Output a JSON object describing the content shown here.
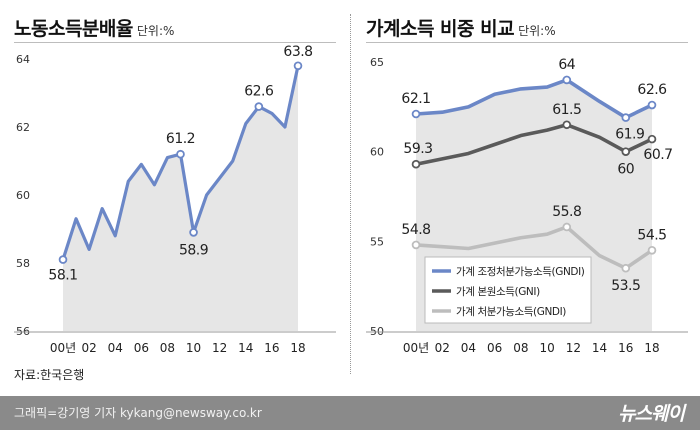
{
  "left_chart": {
    "title": "노동소득분배율",
    "unit": "단위:%"
  },
  "right_chart": {
    "title": "가계소득 비중 비교",
    "unit": "단위:%"
  },
  "source": "자료:한국은행",
  "footer": {
    "credit": "그래픽=강기영 기자 kykang@newsway.co.kr",
    "brand": "뉴스웨이"
  },
  "colors": {
    "labor_line": "#6b87c7",
    "gndi_adj": "#6b87c7",
    "gni": "#5a5a5a",
    "gndi_disp": "#bdbdbd",
    "area_fill": "#e6e6e6",
    "footer_bg": "#8a8a8a"
  },
  "chart_data": [
    {
      "type": "area",
      "title": "노동소득분배율",
      "ylim": [
        56,
        64
      ],
      "yticks": [
        56,
        58,
        60,
        62,
        64
      ],
      "xlim": [
        0,
        18
      ],
      "xticks": [
        0,
        2,
        4,
        6,
        8,
        10,
        12,
        14,
        16,
        18
      ],
      "xtick_labels": [
        "00년",
        "02",
        "04",
        "06",
        "08",
        "10",
        "12",
        "14",
        "16",
        "18"
      ],
      "grid": false,
      "series": [
        {
          "x": [
            0,
            1,
            2,
            3,
            4,
            5,
            6,
            7,
            8,
            9,
            10,
            11,
            12,
            13,
            14,
            15,
            16,
            17,
            18
          ],
          "values": [
            58.1,
            59.3,
            58.4,
            59.6,
            58.8,
            60.4,
            60.9,
            60.3,
            61.1,
            61.2,
            58.9,
            60.0,
            60.5,
            61.0,
            62.1,
            62.6,
            62.4,
            62.0,
            63.8
          ]
        }
      ],
      "labels": [
        {
          "x": 0,
          "text": "58.1"
        },
        {
          "x": 9,
          "text": "61.2"
        },
        {
          "x": 10,
          "text": "58.9"
        },
        {
          "x": 15,
          "text": "62.6"
        },
        {
          "x": 18,
          "text": "63.8"
        }
      ]
    },
    {
      "type": "line",
      "title": "가계소득 비중 비교",
      "ylim": [
        50,
        65
      ],
      "yticks": [
        50,
        55,
        60,
        65
      ],
      "xlim": [
        0,
        18
      ],
      "xticks": [
        0,
        2,
        4,
        6,
        8,
        10,
        12,
        14,
        16,
        18
      ],
      "xtick_labels": [
        "00년",
        "02",
        "04",
        "06",
        "08",
        "10",
        "12",
        "14",
        "16",
        "18"
      ],
      "grid": false,
      "legend": "bottom-left",
      "series": [
        {
          "name": "가계 조정처분가능소득(GNDI)",
          "x": [
            0,
            2,
            4,
            6,
            8,
            10,
            11.5,
            14,
            16,
            18
          ],
          "values": [
            62.1,
            62.2,
            62.5,
            63.2,
            63.5,
            63.6,
            64.0,
            62.8,
            61.9,
            62.6
          ]
        },
        {
          "name": "가계 본원소득(GNI)",
          "x": [
            0,
            2,
            4,
            6,
            8,
            10,
            11.5,
            14,
            16,
            18
          ],
          "values": [
            59.3,
            59.6,
            59.9,
            60.4,
            60.9,
            61.2,
            61.5,
            60.8,
            60.0,
            60.7
          ]
        },
        {
          "name": "가계 처분가능소득(GNDI)",
          "x": [
            0,
            2,
            4,
            6,
            8,
            10,
            11.5,
            14,
            16,
            18
          ],
          "values": [
            54.8,
            54.7,
            54.6,
            54.9,
            55.2,
            55.4,
            55.8,
            54.2,
            53.5,
            54.5
          ]
        }
      ],
      "labels": [
        {
          "series": 0,
          "x": 0,
          "text": "62.1"
        },
        {
          "series": 0,
          "x": 11.5,
          "text": "64"
        },
        {
          "series": 0,
          "x": 16,
          "text": "61.9"
        },
        {
          "series": 0,
          "x": 18,
          "text": "62.6"
        },
        {
          "series": 1,
          "x": 0,
          "text": "59.3"
        },
        {
          "series": 1,
          "x": 11.5,
          "text": "61.5"
        },
        {
          "series": 1,
          "x": 16,
          "text": "60"
        },
        {
          "series": 1,
          "x": 18,
          "text": "60.7"
        },
        {
          "series": 2,
          "x": 0,
          "text": "54.8"
        },
        {
          "series": 2,
          "x": 11.5,
          "text": "55.8"
        },
        {
          "series": 2,
          "x": 16,
          "text": "53.5"
        },
        {
          "series": 2,
          "x": 18,
          "text": "54.5"
        }
      ]
    }
  ]
}
